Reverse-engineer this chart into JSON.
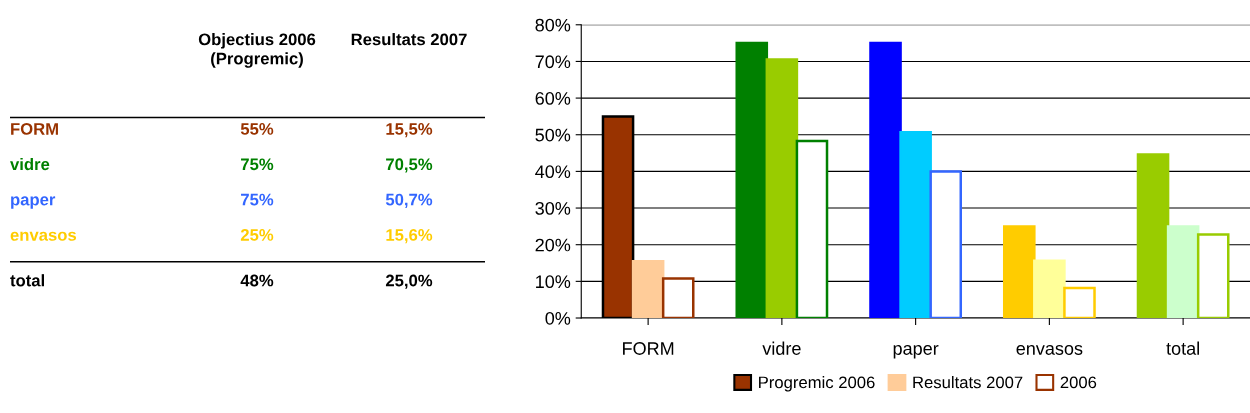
{
  "chart_data": [
    {
      "type": "other",
      "categories": [
        "FORM",
        "vidre",
        "paper",
        "envasos",
        "total"
      ],
      "colors": [
        "#993300",
        "#008000",
        "#3366ff",
        "#ffcc00",
        "#000000"
      ],
      "annotations": [
        "Objectius 2006\n(Progremic)",
        "Resultats 2007",
        "55%",
        "15,5%",
        "75%",
        "70,5%",
        "75%",
        "50,7%",
        "25%",
        "15,6%",
        "48%",
        "25,0%"
      ]
    },
    {
      "type": "bar",
      "categories": [
        "FORM",
        "vidre",
        "paper",
        "envasos",
        "total"
      ],
      "ylim": [
        0,
        80
      ],
      "yticks": [
        {
          "value": 0,
          "label": "0%"
        },
        {
          "value": 10,
          "label": "10%"
        },
        {
          "value": 20,
          "label": "20%"
        },
        {
          "value": 30,
          "label": "30%"
        },
        {
          "value": 40,
          "label": "40%"
        },
        {
          "value": 50,
          "label": "50%"
        },
        {
          "value": 60,
          "label": "60%"
        },
        {
          "value": 70,
          "label": "70%"
        },
        {
          "value": 80,
          "label": "80%"
        }
      ],
      "grid": "y",
      "legend": "bottom",
      "series": [
        {
          "name": "Progremic 2006",
          "colors": [
            "#993300",
            "#008000",
            "#0000ff",
            "#ffcc00",
            "#99cc00"
          ],
          "values": [
            55,
            75,
            75,
            25,
            44.6
          ]
        },
        {
          "name": "Resultats 2007",
          "colors": [
            "#ffcc99",
            "#99cc00",
            "#00ccff",
            "#ffff99",
            "#ccffcc"
          ],
          "values": [
            15.5,
            70.5,
            50.7,
            15.6,
            25
          ]
        },
        {
          "name": "2006",
          "color": "#ffffff",
          "colors": [
            "#993300",
            "#008000",
            "#3366ff",
            "#ffcc00",
            "#99cc00"
          ],
          "values": [
            10.8,
            48.3,
            40,
            8.2,
            22.8
          ]
        }
      ]
    }
  ]
}
